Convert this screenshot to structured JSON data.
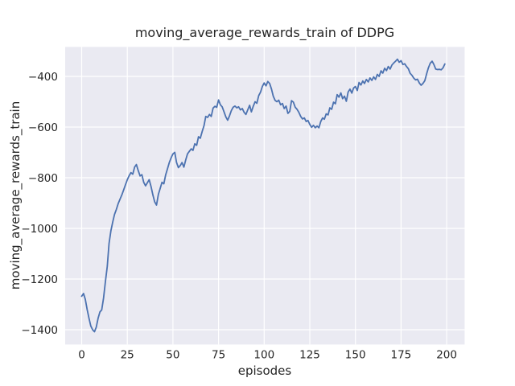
{
  "figure": {
    "title": "moving_average_rewards_train of DDPG",
    "xlabel": "episodes",
    "ylabel": "moving_average_rewards_train"
  },
  "colors": {
    "line": "#4C72B0",
    "plot_background": "#EAEAF2",
    "grid": "#FFFFFF",
    "text": "#262626",
    "figure_background": "#FFFFFF"
  },
  "chart_data": {
    "type": "line",
    "title": "moving_average_rewards_train of DDPG",
    "xlabel": "episodes",
    "ylabel": "moving_average_rewards_train",
    "legend": "none",
    "grid": true,
    "xticks": [
      0,
      25,
      50,
      75,
      100,
      125,
      150,
      175,
      200
    ],
    "yticks": [
      -400,
      -600,
      -800,
      -1000,
      -1200,
      -1400
    ],
    "xlim": [
      -9,
      210
    ],
    "ylim": [
      -1457,
      -283
    ],
    "x_start": 0,
    "x_step": 1,
    "values": [
      -1268,
      -1257,
      -1280,
      -1320,
      -1355,
      -1385,
      -1400,
      -1408,
      -1390,
      -1355,
      -1330,
      -1322,
      -1275,
      -1210,
      -1150,
      -1060,
      -1010,
      -975,
      -945,
      -925,
      -902,
      -885,
      -868,
      -848,
      -828,
      -808,
      -792,
      -780,
      -786,
      -758,
      -748,
      -772,
      -793,
      -788,
      -818,
      -832,
      -820,
      -808,
      -835,
      -868,
      -895,
      -908,
      -866,
      -843,
      -818,
      -824,
      -790,
      -765,
      -740,
      -722,
      -706,
      -700,
      -740,
      -760,
      -752,
      -740,
      -758,
      -730,
      -706,
      -696,
      -686,
      -692,
      -666,
      -672,
      -638,
      -644,
      -618,
      -595,
      -558,
      -562,
      -550,
      -558,
      -525,
      -518,
      -522,
      -493,
      -512,
      -520,
      -540,
      -560,
      -573,
      -556,
      -535,
      -522,
      -517,
      -524,
      -520,
      -532,
      -527,
      -542,
      -550,
      -532,
      -514,
      -540,
      -518,
      -500,
      -506,
      -476,
      -462,
      -440,
      -426,
      -437,
      -420,
      -428,
      -450,
      -478,
      -495,
      -500,
      -494,
      -512,
      -507,
      -527,
      -517,
      -546,
      -538,
      -496,
      -502,
      -522,
      -530,
      -542,
      -558,
      -568,
      -564,
      -578,
      -574,
      -590,
      -601,
      -593,
      -603,
      -596,
      -603,
      -578,
      -564,
      -569,
      -548,
      -552,
      -524,
      -530,
      -502,
      -508,
      -472,
      -482,
      -465,
      -488,
      -478,
      -498,
      -462,
      -450,
      -466,
      -446,
      -440,
      -456,
      -424,
      -434,
      -418,
      -428,
      -412,
      -422,
      -406,
      -416,
      -402,
      -412,
      -392,
      -400,
      -378,
      -387,
      -368,
      -377,
      -361,
      -371,
      -355,
      -347,
      -340,
      -332,
      -344,
      -338,
      -353,
      -350,
      -361,
      -370,
      -388,
      -396,
      -407,
      -414,
      -411,
      -426,
      -435,
      -428,
      -417,
      -390,
      -366,
      -348,
      -340,
      -353,
      -371,
      -373,
      -372,
      -374,
      -366,
      -351
    ]
  }
}
